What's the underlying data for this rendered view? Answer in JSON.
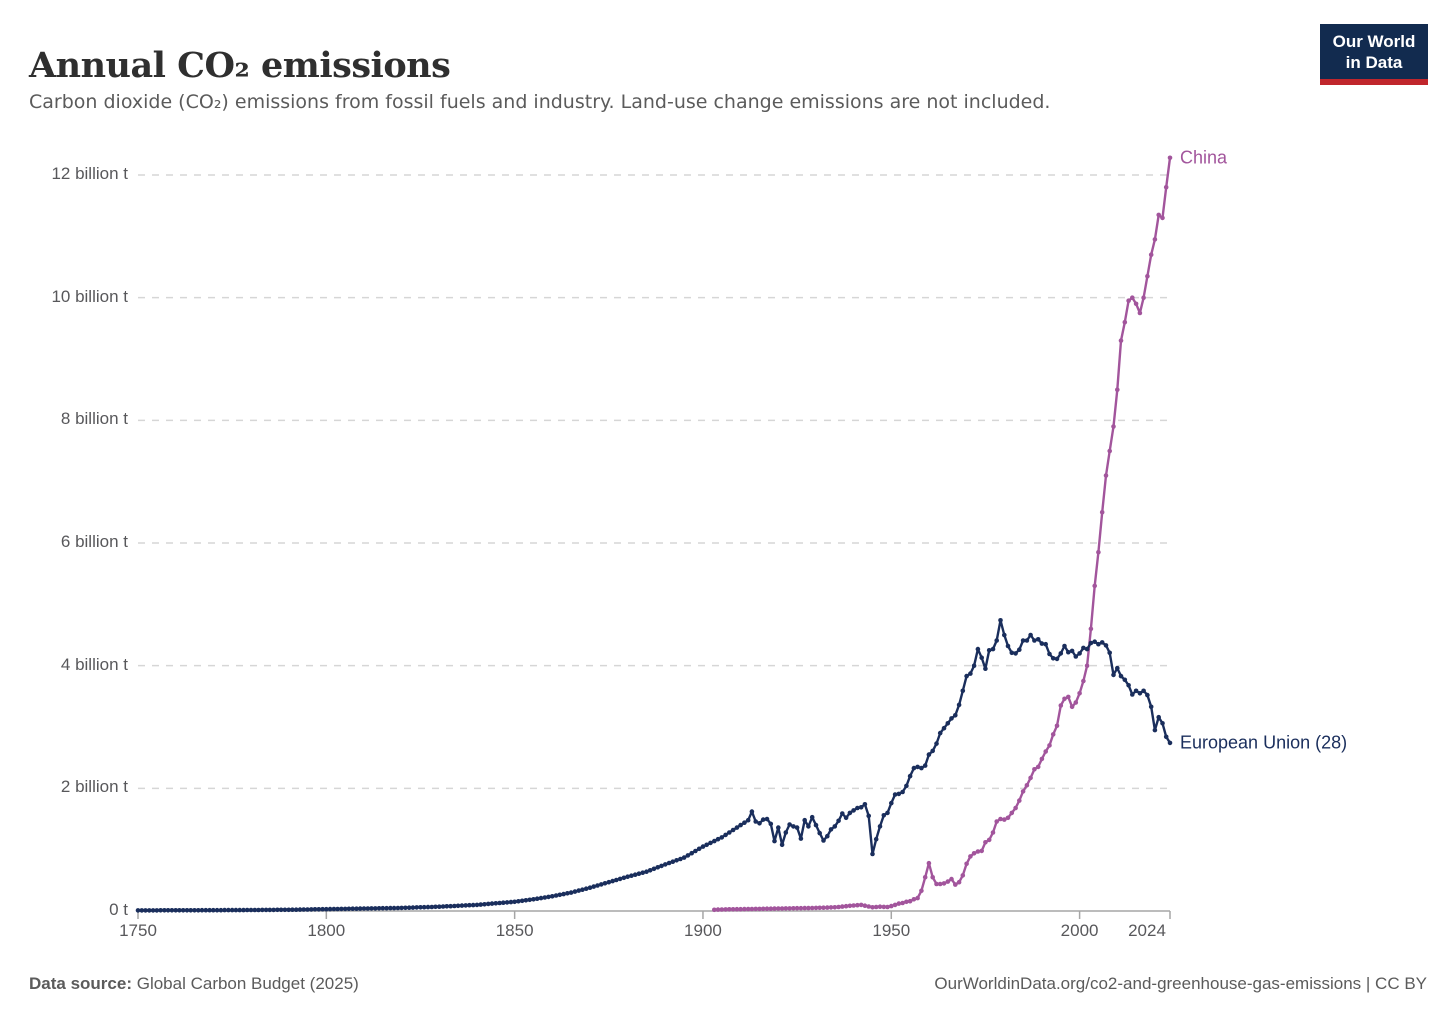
{
  "header": {
    "title": "Annual CO₂ emissions",
    "subtitle": "Carbon dioxide (CO₂) emissions from fossil fuels and industry. Land-use change emissions are not included.",
    "logo": {
      "line1": "Our World",
      "line2": "in Data"
    }
  },
  "footer": {
    "source_label": "Data source:",
    "source_value": "Global Carbon Budget (2025)",
    "attribution": "OurWorldinData.org/co2-and-greenhouse-gas-emissions | CC BY"
  },
  "colors": {
    "china": "#A2559C",
    "european_union": "#1A2E5C",
    "gridline": "#d6d6d6",
    "axis": "#a6a6a6",
    "tick_text": "#58585b",
    "logo_bg": "#122B4F",
    "logo_red": "#C0262C"
  },
  "chart_data": {
    "type": "line",
    "title": "Annual CO₂ emissions",
    "xlabel": "",
    "ylabel": "",
    "unit": "billion tonnes of CO₂ per year",
    "xlim": [
      1750,
      2024
    ],
    "ylim": [
      0,
      12.6
    ],
    "grid": "horizontal dashed",
    "legend_position": "end-of-line labels",
    "markers": "yearly dots on lines",
    "x_ticks": [
      {
        "value": 1750,
        "label": "1750"
      },
      {
        "value": 1800,
        "label": "1800"
      },
      {
        "value": 1850,
        "label": "1850"
      },
      {
        "value": 1900,
        "label": "1900"
      },
      {
        "value": 1950,
        "label": "1950"
      },
      {
        "value": 2000,
        "label": "2000"
      },
      {
        "value": 2024,
        "label": "2024"
      }
    ],
    "y_ticks": [
      {
        "value": 0,
        "label": "0 t"
      },
      {
        "value": 2,
        "label": "2 billion t"
      },
      {
        "value": 4,
        "label": "4 billion t"
      },
      {
        "value": 6,
        "label": "6 billion t"
      },
      {
        "value": 8,
        "label": "8 billion t"
      },
      {
        "value": 10,
        "label": "10 billion t"
      },
      {
        "value": 12,
        "label": "12 billion t"
      }
    ],
    "series": [
      {
        "name": "China",
        "color": "#A2559C",
        "points": [
          [
            1903,
            0.02
          ],
          [
            1905,
            0.025
          ],
          [
            1910,
            0.03
          ],
          [
            1915,
            0.035
          ],
          [
            1920,
            0.04
          ],
          [
            1925,
            0.045
          ],
          [
            1930,
            0.05
          ],
          [
            1935,
            0.06
          ],
          [
            1940,
            0.09
          ],
          [
            1942,
            0.1
          ],
          [
            1945,
            0.06
          ],
          [
            1947,
            0.07
          ],
          [
            1949,
            0.065
          ],
          [
            1950,
            0.08
          ],
          [
            1951,
            0.1
          ],
          [
            1952,
            0.12
          ],
          [
            1953,
            0.13
          ],
          [
            1954,
            0.15
          ],
          [
            1955,
            0.16
          ],
          [
            1956,
            0.19
          ],
          [
            1957,
            0.21
          ],
          [
            1958,
            0.33
          ],
          [
            1959,
            0.55
          ],
          [
            1960,
            0.78
          ],
          [
            1961,
            0.55
          ],
          [
            1962,
            0.44
          ],
          [
            1963,
            0.44
          ],
          [
            1964,
            0.45
          ],
          [
            1965,
            0.48
          ],
          [
            1966,
            0.52
          ],
          [
            1967,
            0.43
          ],
          [
            1968,
            0.47
          ],
          [
            1969,
            0.58
          ],
          [
            1970,
            0.77
          ],
          [
            1971,
            0.89
          ],
          [
            1972,
            0.94
          ],
          [
            1973,
            0.97
          ],
          [
            1974,
            0.98
          ],
          [
            1975,
            1.12
          ],
          [
            1976,
            1.16
          ],
          [
            1977,
            1.28
          ],
          [
            1978,
            1.46
          ],
          [
            1979,
            1.5
          ],
          [
            1980,
            1.49
          ],
          [
            1981,
            1.52
          ],
          [
            1982,
            1.6
          ],
          [
            1983,
            1.68
          ],
          [
            1984,
            1.8
          ],
          [
            1985,
            1.95
          ],
          [
            1986,
            2.05
          ],
          [
            1987,
            2.17
          ],
          [
            1988,
            2.31
          ],
          [
            1989,
            2.35
          ],
          [
            1990,
            2.48
          ],
          [
            1991,
            2.6
          ],
          [
            1992,
            2.7
          ],
          [
            1993,
            2.88
          ],
          [
            1994,
            3.02
          ],
          [
            1995,
            3.35
          ],
          [
            1996,
            3.46
          ],
          [
            1997,
            3.49
          ],
          [
            1998,
            3.33
          ],
          [
            1999,
            3.4
          ],
          [
            2000,
            3.55
          ],
          [
            2001,
            3.75
          ],
          [
            2002,
            4.0
          ],
          [
            2003,
            4.6
          ],
          [
            2004,
            5.3
          ],
          [
            2005,
            5.85
          ],
          [
            2006,
            6.5
          ],
          [
            2007,
            7.1
          ],
          [
            2008,
            7.5
          ],
          [
            2009,
            7.9
          ],
          [
            2010,
            8.5
          ],
          [
            2011,
            9.3
          ],
          [
            2012,
            9.6
          ],
          [
            2013,
            9.95
          ],
          [
            2014,
            10.0
          ],
          [
            2015,
            9.9
          ],
          [
            2016,
            9.75
          ],
          [
            2017,
            10.0
          ],
          [
            2018,
            10.35
          ],
          [
            2019,
            10.7
          ],
          [
            2020,
            10.95
          ],
          [
            2021,
            11.35
          ],
          [
            2022,
            11.3
          ],
          [
            2023,
            11.8
          ],
          [
            2024,
            12.28
          ]
        ]
      },
      {
        "name": "European Union (28)",
        "color": "#1A2E5C",
        "points": [
          [
            1750,
            0.01
          ],
          [
            1760,
            0.011
          ],
          [
            1770,
            0.013
          ],
          [
            1780,
            0.016
          ],
          [
            1790,
            0.02
          ],
          [
            1800,
            0.03
          ],
          [
            1810,
            0.04
          ],
          [
            1820,
            0.05
          ],
          [
            1830,
            0.07
          ],
          [
            1840,
            0.1
          ],
          [
            1850,
            0.15
          ],
          [
            1855,
            0.19
          ],
          [
            1860,
            0.24
          ],
          [
            1865,
            0.3
          ],
          [
            1870,
            0.38
          ],
          [
            1875,
            0.47
          ],
          [
            1880,
            0.56
          ],
          [
            1885,
            0.64
          ],
          [
            1890,
            0.76
          ],
          [
            1895,
            0.87
          ],
          [
            1900,
            1.05
          ],
          [
            1905,
            1.2
          ],
          [
            1910,
            1.4
          ],
          [
            1912,
            1.48
          ],
          [
            1913,
            1.62
          ],
          [
            1914,
            1.46
          ],
          [
            1915,
            1.43
          ],
          [
            1916,
            1.49
          ],
          [
            1917,
            1.5
          ],
          [
            1918,
            1.42
          ],
          [
            1919,
            1.14
          ],
          [
            1920,
            1.36
          ],
          [
            1921,
            1.08
          ],
          [
            1922,
            1.28
          ],
          [
            1923,
            1.41
          ],
          [
            1924,
            1.38
          ],
          [
            1925,
            1.36
          ],
          [
            1926,
            1.18
          ],
          [
            1927,
            1.48
          ],
          [
            1928,
            1.38
          ],
          [
            1929,
            1.53
          ],
          [
            1930,
            1.4
          ],
          [
            1931,
            1.27
          ],
          [
            1932,
            1.15
          ],
          [
            1933,
            1.22
          ],
          [
            1934,
            1.33
          ],
          [
            1935,
            1.38
          ],
          [
            1936,
            1.47
          ],
          [
            1937,
            1.59
          ],
          [
            1938,
            1.52
          ],
          [
            1939,
            1.6
          ],
          [
            1940,
            1.64
          ],
          [
            1941,
            1.68
          ],
          [
            1942,
            1.69
          ],
          [
            1943,
            1.74
          ],
          [
            1944,
            1.55
          ],
          [
            1945,
            0.93
          ],
          [
            1946,
            1.17
          ],
          [
            1947,
            1.38
          ],
          [
            1948,
            1.56
          ],
          [
            1949,
            1.6
          ],
          [
            1950,
            1.76
          ],
          [
            1951,
            1.9
          ],
          [
            1952,
            1.91
          ],
          [
            1953,
            1.94
          ],
          [
            1954,
            2.04
          ],
          [
            1955,
            2.2
          ],
          [
            1956,
            2.33
          ],
          [
            1957,
            2.35
          ],
          [
            1958,
            2.33
          ],
          [
            1959,
            2.37
          ],
          [
            1960,
            2.55
          ],
          [
            1961,
            2.61
          ],
          [
            1962,
            2.73
          ],
          [
            1963,
            2.9
          ],
          [
            1964,
            2.98
          ],
          [
            1965,
            3.06
          ],
          [
            1966,
            3.14
          ],
          [
            1967,
            3.19
          ],
          [
            1968,
            3.36
          ],
          [
            1969,
            3.59
          ],
          [
            1970,
            3.83
          ],
          [
            1971,
            3.87
          ],
          [
            1972,
            4.0
          ],
          [
            1973,
            4.27
          ],
          [
            1974,
            4.13
          ],
          [
            1975,
            3.95
          ],
          [
            1976,
            4.25
          ],
          [
            1977,
            4.27
          ],
          [
            1978,
            4.41
          ],
          [
            1979,
            4.74
          ],
          [
            1980,
            4.5
          ],
          [
            1981,
            4.32
          ],
          [
            1982,
            4.21
          ],
          [
            1983,
            4.2
          ],
          [
            1984,
            4.26
          ],
          [
            1985,
            4.41
          ],
          [
            1986,
            4.41
          ],
          [
            1987,
            4.5
          ],
          [
            1988,
            4.41
          ],
          [
            1989,
            4.43
          ],
          [
            1990,
            4.36
          ],
          [
            1991,
            4.35
          ],
          [
            1992,
            4.19
          ],
          [
            1993,
            4.12
          ],
          [
            1994,
            4.11
          ],
          [
            1995,
            4.2
          ],
          [
            1996,
            4.32
          ],
          [
            1997,
            4.22
          ],
          [
            1998,
            4.24
          ],
          [
            1999,
            4.15
          ],
          [
            2000,
            4.2
          ],
          [
            2001,
            4.29
          ],
          [
            2002,
            4.27
          ],
          [
            2003,
            4.37
          ],
          [
            2004,
            4.39
          ],
          [
            2005,
            4.35
          ],
          [
            2006,
            4.38
          ],
          [
            2007,
            4.33
          ],
          [
            2008,
            4.21
          ],
          [
            2009,
            3.85
          ],
          [
            2010,
            3.96
          ],
          [
            2011,
            3.83
          ],
          [
            2012,
            3.77
          ],
          [
            2013,
            3.68
          ],
          [
            2014,
            3.53
          ],
          [
            2015,
            3.59
          ],
          [
            2016,
            3.55
          ],
          [
            2017,
            3.59
          ],
          [
            2018,
            3.52
          ],
          [
            2019,
            3.33
          ],
          [
            2020,
            2.95
          ],
          [
            2021,
            3.16
          ],
          [
            2022,
            3.06
          ],
          [
            2023,
            2.84
          ],
          [
            2024,
            2.74
          ]
        ]
      }
    ]
  }
}
